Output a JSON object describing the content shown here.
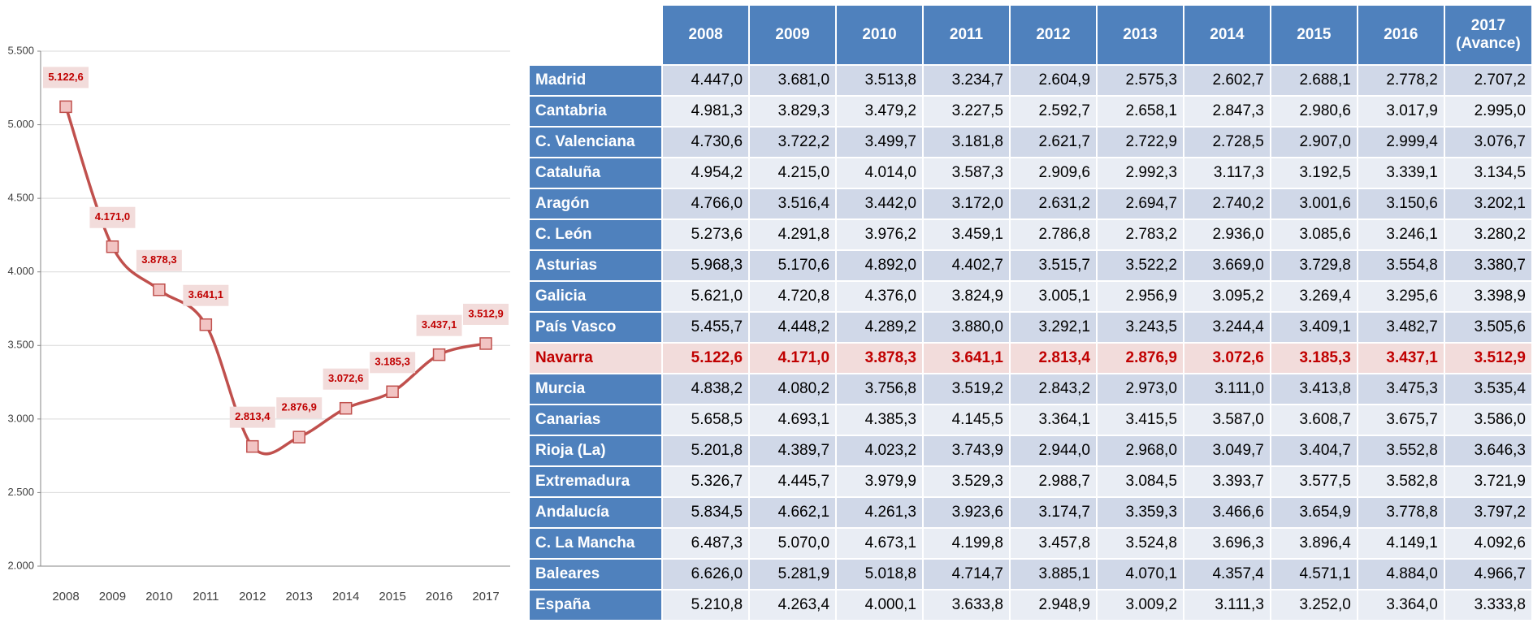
{
  "chart_data": {
    "type": "line",
    "categories": [
      "2008",
      "2009",
      "2010",
      "2011",
      "2012",
      "2013",
      "2014",
      "2015",
      "2016",
      "2017"
    ],
    "values": [
      5122.6,
      4171.0,
      3878.3,
      3641.1,
      2813.4,
      2876.9,
      3072.6,
      3185.3,
      3437.1,
      3512.9
    ],
    "value_labels": [
      "5.122,6",
      "4.171,0",
      "3.878,3",
      "3.641,1",
      "2.813,4",
      "2.876,9",
      "3.072,6",
      "3.185,3",
      "3.437,1",
      "3.512,9"
    ],
    "color": "#c0504d",
    "ylim": [
      2000,
      5500
    ],
    "yticks": [
      {
        "value": 2000,
        "label": "2.000"
      },
      {
        "value": 2500,
        "label": "2.500"
      },
      {
        "value": 3000,
        "label": "3.000"
      },
      {
        "value": 3500,
        "label": "3.500"
      },
      {
        "value": 4000,
        "label": "4.000"
      },
      {
        "value": 4500,
        "label": "4.500"
      },
      {
        "value": 5000,
        "label": "5.000"
      },
      {
        "value": 5500,
        "label": "5.500"
      }
    ],
    "grid": true
  },
  "table": {
    "columns": [
      "2008",
      "2009",
      "2010",
      "2011",
      "2012",
      "2013",
      "2014",
      "2015",
      "2016",
      "2017 (Avance)"
    ],
    "rows": [
      {
        "label": "Madrid",
        "cells": [
          "4.447,0",
          "3.681,0",
          "3.513,8",
          "3.234,7",
          "2.604,9",
          "2.575,3",
          "2.602,7",
          "2.688,1",
          "2.778,2",
          "2.707,2"
        ]
      },
      {
        "label": "Cantabria",
        "cells": [
          "4.981,3",
          "3.829,3",
          "3.479,2",
          "3.227,5",
          "2.592,7",
          "2.658,1",
          "2.847,3",
          "2.980,6",
          "3.017,9",
          "2.995,0"
        ]
      },
      {
        "label": "C. Valenciana",
        "cells": [
          "4.730,6",
          "3.722,2",
          "3.499,7",
          "3.181,8",
          "2.621,7",
          "2.722,9",
          "2.728,5",
          "2.907,0",
          "2.999,4",
          "3.076,7"
        ]
      },
      {
        "label": "Cataluña",
        "cells": [
          "4.954,2",
          "4.215,0",
          "4.014,0",
          "3.587,3",
          "2.909,6",
          "2.992,3",
          "3.117,3",
          "3.192,5",
          "3.339,1",
          "3.134,5"
        ]
      },
      {
        "label": "Aragón",
        "cells": [
          "4.766,0",
          "3.516,4",
          "3.442,0",
          "3.172,0",
          "2.631,2",
          "2.694,7",
          "2.740,2",
          "3.001,6",
          "3.150,6",
          "3.202,1"
        ]
      },
      {
        "label": "C. León",
        "cells": [
          "5.273,6",
          "4.291,8",
          "3.976,2",
          "3.459,1",
          "2.786,8",
          "2.783,2",
          "2.936,0",
          "3.085,6",
          "3.246,1",
          "3.280,2"
        ]
      },
      {
        "label": "Asturias",
        "cells": [
          "5.968,3",
          "5.170,6",
          "4.892,0",
          "4.402,7",
          "3.515,7",
          "3.522,2",
          "3.669,0",
          "3.729,8",
          "3.554,8",
          "3.380,7"
        ]
      },
      {
        "label": "Galicia",
        "cells": [
          "5.621,0",
          "4.720,8",
          "4.376,0",
          "3.824,9",
          "3.005,1",
          "2.956,9",
          "3.095,2",
          "3.269,4",
          "3.295,6",
          "3.398,9"
        ]
      },
      {
        "label": "País Vasco",
        "cells": [
          "5.455,7",
          "4.448,2",
          "4.289,2",
          "3.880,0",
          "3.292,1",
          "3.243,5",
          "3.244,4",
          "3.409,1",
          "3.482,7",
          "3.505,6"
        ]
      },
      {
        "label": "Navarra",
        "highlight": true,
        "cells": [
          "5.122,6",
          "4.171,0",
          "3.878,3",
          "3.641,1",
          "2.813,4",
          "2.876,9",
          "3.072,6",
          "3.185,3",
          "3.437,1",
          "3.512,9"
        ]
      },
      {
        "label": "Murcia",
        "cells": [
          "4.838,2",
          "4.080,2",
          "3.756,8",
          "3.519,2",
          "2.843,2",
          "2.973,0",
          "3.111,0",
          "3.413,8",
          "3.475,3",
          "3.535,4"
        ]
      },
      {
        "label": "Canarias",
        "cells": [
          "5.658,5",
          "4.693,1",
          "4.385,3",
          "4.145,5",
          "3.364,1",
          "3.415,5",
          "3.587,0",
          "3.608,7",
          "3.675,7",
          "3.586,0"
        ]
      },
      {
        "label": "Rioja (La)",
        "cells": [
          "5.201,8",
          "4.389,7",
          "4.023,2",
          "3.743,9",
          "2.944,0",
          "2.968,0",
          "3.049,7",
          "3.404,7",
          "3.552,8",
          "3.646,3"
        ]
      },
      {
        "label": "Extremadura",
        "cells": [
          "5.326,7",
          "4.445,7",
          "3.979,9",
          "3.529,3",
          "2.988,7",
          "3.084,5",
          "3.393,7",
          "3.577,5",
          "3.582,8",
          "3.721,9"
        ]
      },
      {
        "label": "Andalucía",
        "cells": [
          "5.834,5",
          "4.662,1",
          "4.261,3",
          "3.923,6",
          "3.174,7",
          "3.359,3",
          "3.466,6",
          "3.654,9",
          "3.778,8",
          "3.797,2"
        ]
      },
      {
        "label": "C. La Mancha",
        "cells": [
          "6.487,3",
          "5.070,0",
          "4.673,1",
          "4.199,8",
          "3.457,8",
          "3.524,8",
          "3.696,3",
          "3.896,4",
          "4.149,1",
          "4.092,6"
        ]
      },
      {
        "label": "Baleares",
        "cells": [
          "6.626,0",
          "5.281,9",
          "5.018,8",
          "4.714,7",
          "3.885,1",
          "4.070,1",
          "4.357,4",
          "4.571,1",
          "4.884,0",
          "4.966,7"
        ]
      },
      {
        "label": "España",
        "cells": [
          "5.210,8",
          "4.263,4",
          "4.000,1",
          "3.633,8",
          "2.948,9",
          "3.009,2",
          "3.111,3",
          "3.252,0",
          "3.364,0",
          "3.333,8"
        ]
      }
    ]
  }
}
